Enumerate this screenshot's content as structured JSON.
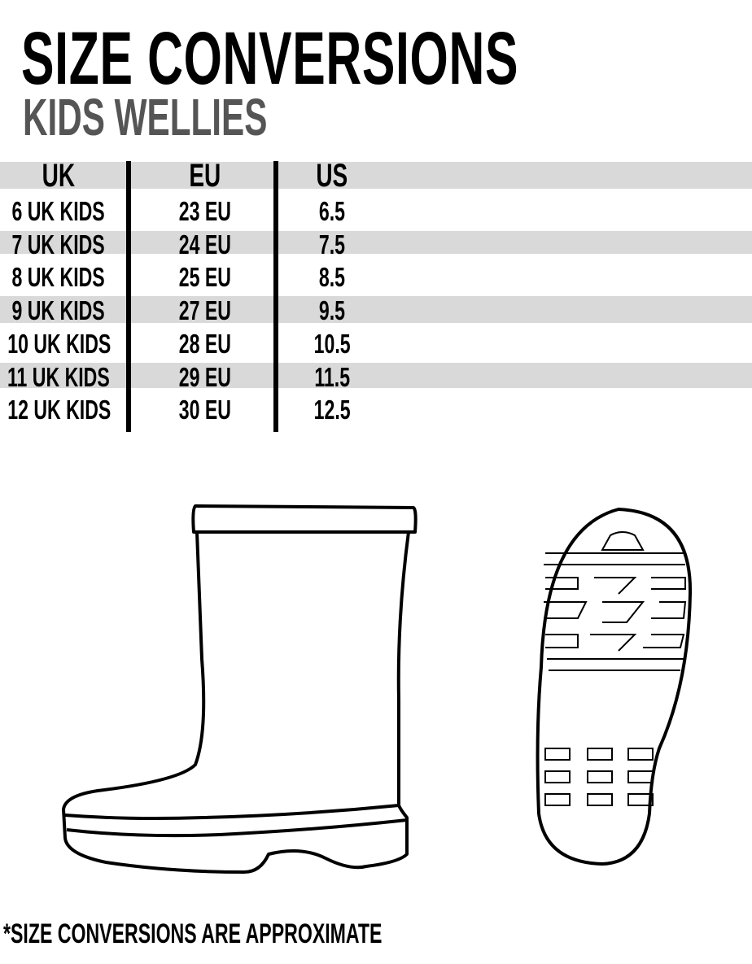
{
  "title": "SIZE CONVERSIONS",
  "subtitle": "KIDS WELLIES",
  "table": {
    "headers": [
      "UK",
      "EU",
      "US"
    ],
    "rows": [
      [
        "6 UK KIDS",
        "23 EU",
        "6.5"
      ],
      [
        "7 UK KIDS",
        "24 EU",
        "7.5"
      ],
      [
        "8 UK KIDS",
        "25 EU",
        "8.5"
      ],
      [
        "9 UK KIDS",
        "27 EU",
        "9.5"
      ],
      [
        "10 UK KIDS",
        "28 EU",
        "10.5"
      ],
      [
        "11 UK KIDS",
        "29 EU",
        "11.5"
      ],
      [
        "12 UK KIDS",
        "30 EU",
        "12.5"
      ]
    ]
  },
  "footnote": "*SIZE CONVERSIONS ARE APPROXIMATE",
  "colors": {
    "text": "#000000",
    "subtitle": "#555555",
    "band": "#d9d9d9"
  },
  "illustrations": [
    "welly-boot-side-icon",
    "welly-sole-icon"
  ]
}
